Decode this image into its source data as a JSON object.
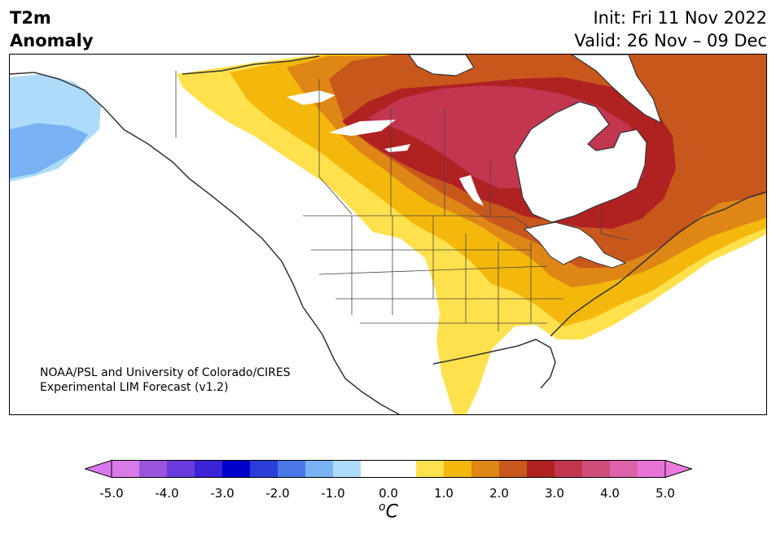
{
  "header": {
    "title_line1": "T2m",
    "title_line2": "Anomaly",
    "init_text": "Init: Fri 11 Nov 2022",
    "valid_text": "Valid: 26 Nov – 09 Dec"
  },
  "map": {
    "credit_line1": "NOAA/PSL and University of Colorado/CIRES",
    "credit_line2": "Experimental LIM Forecast (v1.2)",
    "field": "2 m temperature anomaly",
    "region": "North America"
  },
  "colorbar": {
    "unit_base": "C",
    "unit_sup": "o",
    "tick_labels": [
      "-5.0",
      "-4.0",
      "-3.0",
      "-2.0",
      "-1.0",
      "0.0",
      "1.0",
      "2.0",
      "3.0",
      "4.0",
      "5.0"
    ],
    "colors": [
      "#d97ae8",
      "#9a55dd",
      "#6a3bdc",
      "#3a22d6",
      "#0000cc",
      "#2a3ed8",
      "#4a77e6",
      "#78b2f2",
      "#aedbf9",
      "#ffffff",
      "#ffffff",
      "#ffe14d",
      "#f4b80c",
      "#de8716",
      "#c8571c",
      "#b02222",
      "#c23650",
      "#cf4e7b",
      "#dd64aa",
      "#e874d6"
    ],
    "under_color": "#d878ec",
    "over_color": "#ec7ade"
  },
  "colors": {
    "land_outline": "#333333",
    "state_border": "#444444"
  }
}
